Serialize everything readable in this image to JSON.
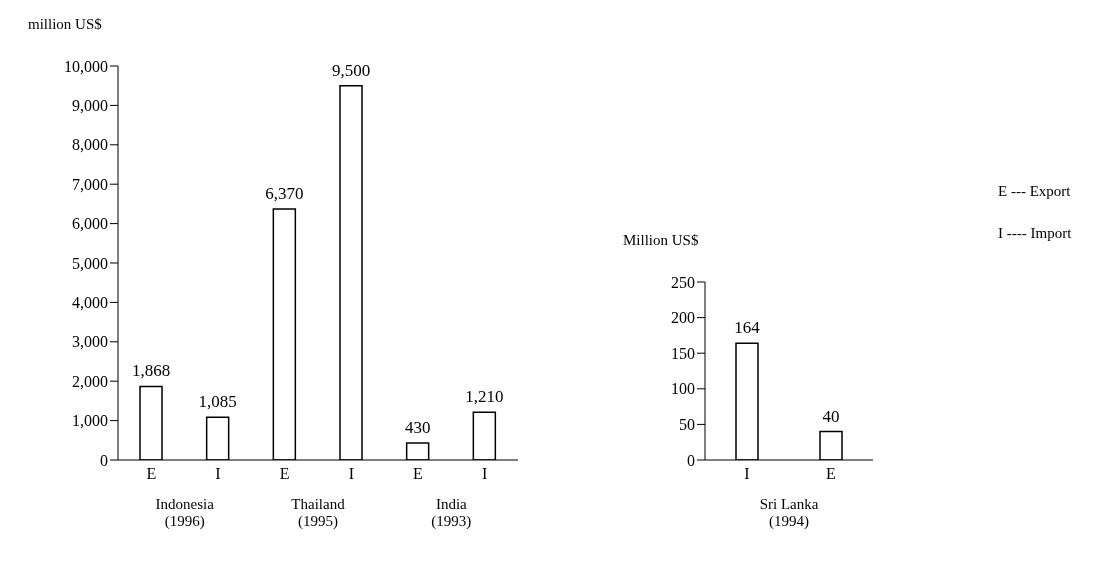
{
  "chart_data": [
    {
      "type": "bar",
      "ylabel": "million US$",
      "categories": [
        "E",
        "I",
        "E",
        "I",
        "E",
        "I"
      ],
      "values": [
        1868,
        1085,
        6370,
        9500,
        430,
        1210
      ],
      "value_labels": [
        "1,868",
        "1,085",
        "6,370",
        "9,500",
        "430",
        "1,210"
      ],
      "color": "#ffffff",
      "ylim": [
        0,
        10000
      ],
      "yticks": [
        0,
        {
          "value": 1000,
          "label": "1,000"
        },
        {
          "value": 2000,
          "label": "2,000"
        },
        {
          "value": 3000,
          "label": "3,000"
        },
        {
          "value": 4000,
          "label": "4,000"
        },
        {
          "value": 5000,
          "label": "5,000"
        },
        {
          "value": 6000,
          "label": "6,000"
        },
        {
          "value": 7000,
          "label": "7,000"
        },
        {
          "value": 8000,
          "label": "8,000"
        },
        {
          "value": 9000,
          "label": "9,000"
        },
        {
          "value": 10000,
          "label": "10,000"
        }
      ],
      "grid": false,
      "annotations": [
        "Indonesia\n(1996)",
        "Thailand\n(1995)",
        "India\n(1993)"
      ]
    },
    {
      "type": "bar",
      "ylabel": "Million US$",
      "categories": [
        "I",
        "E"
      ],
      "values": [
        164,
        40
      ],
      "value_labels": [
        "164",
        "40"
      ],
      "color": "#ffffff",
      "ylim": [
        0,
        250
      ],
      "yticks": [
        0,
        50,
        100,
        150,
        200,
        250
      ],
      "grid": false,
      "annotations": [
        "Sri Lanka\n(1994)"
      ]
    },
    {
      "type": "other",
      "annotations": [
        "E --- Export",
        "I ---- Import"
      ]
    }
  ]
}
